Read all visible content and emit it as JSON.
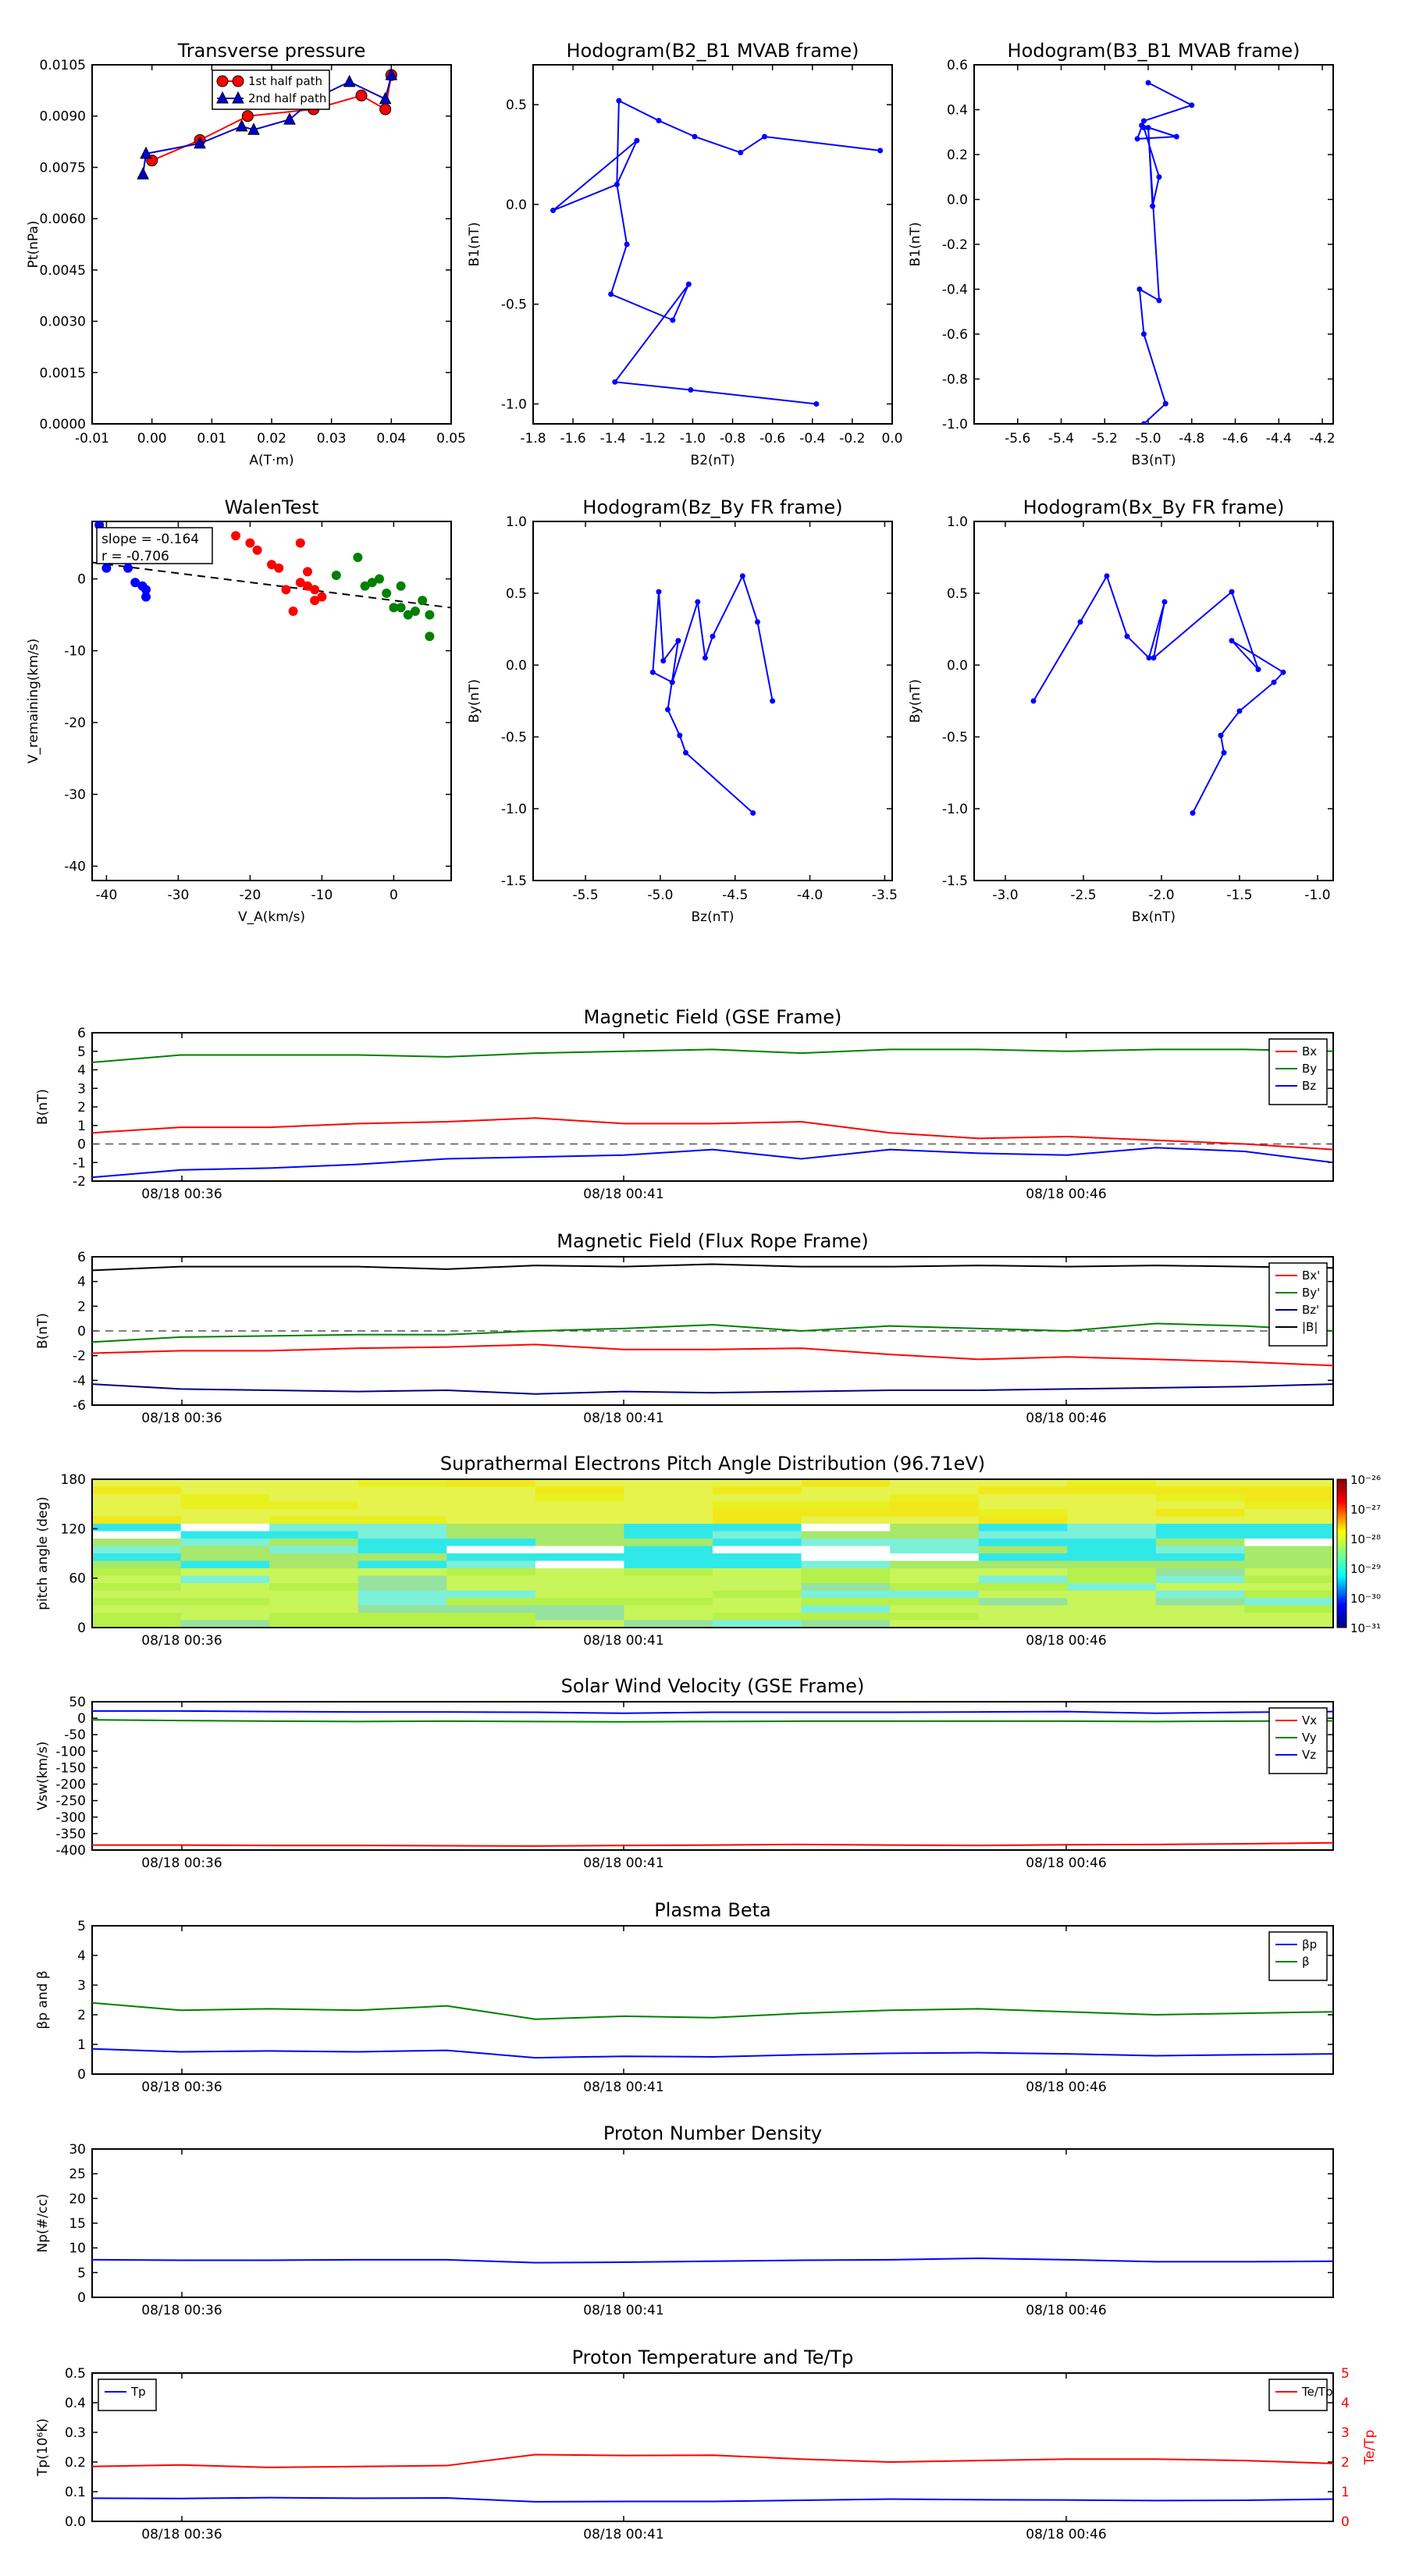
{
  "panels": {
    "transverse": {
      "title": "Transverse pressure",
      "xlabel": "A(T·m)",
      "ylabel": "Pt(nPa)",
      "xlim": [
        -0.01,
        0.05
      ],
      "ylim": [
        0,
        0.0105
      ],
      "xticks": [
        "-0.01",
        "0.00",
        "0.01",
        "0.02",
        "0.03",
        "0.04",
        "0.05"
      ],
      "yticks": [
        "0.0000",
        "0.0015",
        "0.0030",
        "0.0045",
        "0.0060",
        "0.0075",
        "0.0090",
        "0.0105"
      ],
      "legend": [
        "1st half path",
        "2nd half path"
      ],
      "series": [
        {
          "name": "1st half path",
          "color": "#ff0000",
          "marker": "circle",
          "x": [
            0.04,
            0.039,
            0.035,
            0.027,
            0.016,
            0.008,
            0.0
          ],
          "y": [
            0.0102,
            0.0092,
            0.0096,
            0.0092,
            0.009,
            0.0083,
            0.0077
          ]
        },
        {
          "name": "2nd half path",
          "color": "#0000cc",
          "marker": "triangle",
          "x": [
            -0.0015,
            -0.001,
            0.008,
            0.015,
            0.017,
            0.023,
            0.027,
            0.033,
            0.039,
            0.04
          ],
          "y": [
            0.0073,
            0.0079,
            0.0082,
            0.0087,
            0.0086,
            0.0089,
            0.0095,
            0.01,
            0.0095,
            0.0102
          ]
        }
      ]
    },
    "hodo_mvab_b2": {
      "title": "Hodogram(B2_B1 MVAB frame)",
      "xlabel": "B2(nT)",
      "ylabel": "B1(nT)",
      "xlim": [
        -1.8,
        0.0
      ],
      "ylim": [
        -1.1,
        0.7
      ],
      "xticks": [
        "-1.8",
        "-1.6",
        "-1.4",
        "-1.2",
        "-1.0",
        "-0.8",
        "-0.6",
        "-0.4",
        "-0.2",
        "0.0"
      ],
      "yticks": [
        "-1.0",
        "-0.5",
        "0.0",
        "0.5"
      ],
      "x": [
        -0.06,
        -0.64,
        -0.76,
        -0.99,
        -1.17,
        -1.37,
        -1.38,
        -1.28,
        -1.7,
        -1.38,
        -1.33,
        -1.41,
        -1.1,
        -1.02,
        -1.39,
        -1.01,
        -0.38
      ],
      "y": [
        0.27,
        0.34,
        0.26,
        0.34,
        0.42,
        0.52,
        0.1,
        0.32,
        -0.03,
        0.1,
        -0.2,
        -0.45,
        -0.58,
        -0.4,
        -0.89,
        -0.93,
        -1.0
      ]
    },
    "hodo_mvab_b3": {
      "title": "Hodogram(B3_B1 MVAB frame)",
      "xlabel": "B3(nT)",
      "ylabel": "B1(nT)",
      "xlim": [
        -5.8,
        -4.15
      ],
      "ylim": [
        -1.0,
        0.6
      ],
      "xticks": [
        "-5.6",
        "-5.4",
        "-5.2",
        "-5.0",
        "-4.8",
        "-4.6",
        "-4.4",
        "-4.2"
      ],
      "yticks": [
        "-1.0",
        "-0.8",
        "-0.6",
        "-0.4",
        "-0.2",
        "0.0",
        "0.2",
        "0.4",
        "0.6"
      ],
      "x": [
        -5.0,
        -4.8,
        -5.02,
        -5.05,
        -4.87,
        -5.03,
        -5.02,
        -4.95,
        -4.98,
        -5.0,
        -4.95,
        -5.04,
        -5.02,
        -4.92,
        -5.02
      ],
      "y": [
        0.52,
        0.42,
        0.35,
        0.27,
        0.28,
        0.33,
        0.32,
        0.1,
        -0.03,
        0.32,
        -0.45,
        -0.4,
        -0.6,
        -0.91,
        -1.0
      ]
    },
    "walen": {
      "title": "WalenTest",
      "xlabel": "V_A(km/s)",
      "ylabel": "V_remaining(km/s)",
      "xlim": [
        -42,
        8
      ],
      "ylim": [
        -42,
        8
      ],
      "xticks": [
        "-40",
        "-30",
        "-20",
        "-10",
        "0"
      ],
      "yticks": [
        "-40",
        "-30",
        "-20",
        "-10",
        "0"
      ],
      "annotation": [
        "slope = -0.164",
        "r = -0.706"
      ],
      "fit": {
        "slope": -0.164,
        "x": [
          -42,
          8
        ]
      },
      "blue": {
        "x": [
          -41,
          -40,
          -37,
          -36,
          -35,
          -34.5,
          -34.5
        ],
        "y": [
          7.5,
          1.5,
          1.5,
          -0.5,
          -1,
          -1.5,
          -2.5
        ]
      },
      "red": {
        "x": [
          -22,
          -20,
          -19,
          -17,
          -16,
          -15,
          -14,
          -13,
          -13,
          -12,
          -12,
          -11,
          -11,
          -10
        ],
        "y": [
          6,
          5,
          4,
          2,
          1.5,
          -1.5,
          -4.5,
          5,
          -0.5,
          1,
          -1,
          -1.5,
          -3,
          -2.5
        ]
      },
      "green": {
        "x": [
          -8,
          -5,
          -4,
          -3,
          -2,
          -1,
          0,
          1,
          1,
          2,
          3,
          4,
          5,
          5
        ],
        "y": [
          0.5,
          3,
          -1,
          -0.5,
          0,
          -2,
          -4,
          -4,
          -1,
          -5,
          -4.5,
          -3,
          -5,
          -8
        ]
      }
    },
    "hodo_fr_bz": {
      "title": "Hodogram(Bz_By FR frame)",
      "xlabel": "Bz(nT)",
      "ylabel": "By(nT)",
      "xlim": [
        -5.85,
        -3.45
      ],
      "ylim": [
        -1.5,
        1.0
      ],
      "xticks": [
        "-5.5",
        "-5.0",
        "-4.5",
        "-4.0",
        "-3.5"
      ],
      "yticks": [
        "-1.5",
        "-1.0",
        "-0.5",
        "0.0",
        "0.5",
        "1.0"
      ],
      "x": [
        -4.25,
        -4.35,
        -4.45,
        -4.65,
        -4.7,
        -4.75,
        -4.92,
        -5.05,
        -5.01,
        -4.98,
        -4.88,
        -4.95,
        -4.87,
        -4.83,
        -4.38
      ],
      "y": [
        -0.25,
        0.3,
        0.62,
        0.2,
        0.05,
        0.44,
        -0.12,
        -0.05,
        0.51,
        0.03,
        0.17,
        -0.31,
        -0.49,
        -0.61,
        -1.03
      ]
    },
    "hodo_fr_bx": {
      "title": "Hodogram(Bx_By FR frame)",
      "xlabel": "Bx(nT)",
      "ylabel": "By(nT)",
      "xlim": [
        -3.2,
        -0.9
      ],
      "ylim": [
        -1.5,
        1.0
      ],
      "xticks": [
        "-3.0",
        "-2.5",
        "-2.0",
        "-1.5",
        "-1.0"
      ],
      "yticks": [
        "-1.5",
        "-1.0",
        "-0.5",
        "0.0",
        "0.5",
        "1.0"
      ],
      "x": [
        -2.82,
        -2.52,
        -2.35,
        -2.22,
        -2.08,
        -1.98,
        -2.05,
        -1.55,
        -1.38,
        -1.55,
        -1.22,
        -1.28,
        -1.5,
        -1.62,
        -1.6,
        -1.8
      ],
      "y": [
        -0.25,
        0.3,
        0.62,
        0.2,
        0.05,
        0.44,
        0.05,
        0.51,
        -0.03,
        0.17,
        -0.05,
        -0.12,
        -0.32,
        -0.49,
        -0.61,
        -1.03
      ]
    }
  },
  "timeseries": {
    "xticks": [
      "08/18 00:36",
      "08/18 00:41",
      "08/18 00:46"
    ],
    "n": 15,
    "mag_gse": {
      "title": "Magnetic Field (GSE Frame)",
      "ylabel": "B(nT)",
      "ylim": [
        -2,
        6
      ],
      "yticks": [
        "-2",
        "-1",
        "0",
        "1",
        "2",
        "3",
        "4",
        "5",
        "6"
      ],
      "dashed_zero": true,
      "series": [
        {
          "name": "Bx",
          "color": "#ff0000",
          "values": [
            0.6,
            0.9,
            0.9,
            1.1,
            1.2,
            1.4,
            1.1,
            1.1,
            1.2,
            0.6,
            0.3,
            0.4,
            0.2,
            0.0,
            -0.3
          ]
        },
        {
          "name": "By",
          "color": "#008000",
          "values": [
            4.4,
            4.8,
            4.8,
            4.8,
            4.7,
            4.9,
            5.0,
            5.1,
            4.9,
            5.1,
            5.1,
            5.0,
            5.1,
            5.1,
            5.0
          ]
        },
        {
          "name": "Bz",
          "color": "#0000ff",
          "values": [
            -1.8,
            -1.4,
            -1.3,
            -1.1,
            -0.8,
            -0.7,
            -0.6,
            -0.3,
            -0.8,
            -0.3,
            -0.5,
            -0.6,
            -0.2,
            -0.4,
            -1.0
          ]
        }
      ]
    },
    "mag_fr": {
      "title": "Magnetic Field (Flux Rope Frame)",
      "ylabel": "B(nT)",
      "ylim": [
        -6,
        6
      ],
      "yticks": [
        "-6",
        "-4",
        "-2",
        "0",
        "2",
        "4",
        "6"
      ],
      "dashed_zero": true,
      "series": [
        {
          "name": "Bx'",
          "color": "#ff0000",
          "values": [
            -1.8,
            -1.6,
            -1.6,
            -1.4,
            -1.3,
            -1.1,
            -1.5,
            -1.5,
            -1.4,
            -1.9,
            -2.3,
            -2.1,
            -2.3,
            -2.5,
            -2.8
          ]
        },
        {
          "name": "By'",
          "color": "#008000",
          "values": [
            -0.9,
            -0.5,
            -0.4,
            -0.3,
            -0.3,
            0.0,
            0.2,
            0.5,
            0.0,
            0.4,
            0.2,
            0.0,
            0.6,
            0.4,
            0.0
          ]
        },
        {
          "name": "Bz'",
          "color": "#000080",
          "values": [
            -4.3,
            -4.7,
            -4.8,
            -4.9,
            -4.8,
            -5.1,
            -4.9,
            -5.0,
            -4.9,
            -4.8,
            -4.8,
            -4.7,
            -4.6,
            -4.5,
            -4.3
          ]
        },
        {
          "name": "|B|",
          "color": "#000000",
          "values": [
            4.9,
            5.2,
            5.2,
            5.2,
            5.0,
            5.3,
            5.2,
            5.4,
            5.2,
            5.2,
            5.3,
            5.2,
            5.3,
            5.2,
            5.1
          ]
        }
      ]
    },
    "pad": {
      "title": "Suprathermal Electrons Pitch Angle Distribution (96.71eV)",
      "ylabel": "pitch angle (deg)",
      "ylim": [
        0,
        180
      ],
      "yticks": [
        "0",
        "60",
        "120",
        "180"
      ],
      "colorbar_ticks": [
        "10⁻²⁶",
        "10⁻²⁷",
        "10⁻²⁸",
        "10⁻²⁹",
        "10⁻³⁰",
        "10⁻³¹"
      ],
      "ncols": 14,
      "nrows": 20,
      "seed": 7
    },
    "vsw": {
      "title": "Solar Wind Velocity (GSE Frame)",
      "ylabel": "Vsw(km/s)",
      "ylim": [
        -400,
        50
      ],
      "yticks": [
        "-400",
        "-350",
        "-300",
        "-250",
        "-200",
        "-150",
        "-100",
        "-50",
        "0",
        "50"
      ],
      "series": [
        {
          "name": "Vx",
          "color": "#ff0000",
          "values": [
            -385,
            -385,
            -386,
            -386,
            -387,
            -388,
            -386,
            -385,
            -383,
            -385,
            -386,
            -384,
            -383,
            -381,
            -378
          ]
        },
        {
          "name": "Vy",
          "color": "#008000",
          "values": [
            -5,
            -7,
            -9,
            -10,
            -9,
            -10,
            -11,
            -10,
            -9,
            -9,
            -9,
            -9,
            -10,
            -9,
            -8
          ]
        },
        {
          "name": "Vz",
          "color": "#0000ff",
          "values": [
            22,
            22,
            20,
            19,
            19,
            18,
            15,
            18,
            18,
            18,
            19,
            20,
            15,
            18,
            20
          ]
        }
      ]
    },
    "beta": {
      "title": "Plasma Beta",
      "ylabel": "βp and β",
      "ylim": [
        0,
        5
      ],
      "yticks": [
        "0",
        "1",
        "2",
        "3",
        "4",
        "5"
      ],
      "series": [
        {
          "name": "βp",
          "color": "#0000ff",
          "values": [
            0.85,
            0.75,
            0.78,
            0.75,
            0.8,
            0.55,
            0.6,
            0.58,
            0.65,
            0.7,
            0.72,
            0.68,
            0.62,
            0.65,
            0.68
          ]
        },
        {
          "name": "β",
          "color": "#008000",
          "values": [
            2.4,
            2.15,
            2.2,
            2.15,
            2.3,
            1.85,
            1.95,
            1.9,
            2.05,
            2.15,
            2.2,
            2.1,
            2.0,
            2.05,
            2.1
          ]
        }
      ]
    },
    "density": {
      "title": "Proton Number Density",
      "ylabel": "Np(#/cc)",
      "ylim": [
        0,
        30
      ],
      "yticks": [
        "0",
        "5",
        "10",
        "15",
        "20",
        "25",
        "30"
      ],
      "series": [
        {
          "name": "Np",
          "color": "#0000ff",
          "values": [
            7.6,
            7.5,
            7.5,
            7.6,
            7.6,
            7.0,
            7.1,
            7.3,
            7.5,
            7.6,
            7.9,
            7.6,
            7.2,
            7.2,
            7.3
          ]
        }
      ]
    },
    "temp": {
      "title": "Proton Temperature and Te/Tp",
      "ylabel": "Tp(10⁶K)",
      "ylabel_right": "Te/Tp",
      "ylim": [
        0,
        0.5
      ],
      "yticks": [
        "0.0",
        "0.1",
        "0.2",
        "0.3",
        "0.4",
        "0.5"
      ],
      "ylim_right": [
        0,
        5
      ],
      "yticks_right": [
        "0",
        "1",
        "2",
        "3",
        "4",
        "5"
      ],
      "series": [
        {
          "name": "Tp",
          "color": "#0000ff",
          "axis": "left",
          "values": [
            0.078,
            0.077,
            0.08,
            0.078,
            0.079,
            0.066,
            0.067,
            0.067,
            0.071,
            0.075,
            0.073,
            0.072,
            0.07,
            0.071,
            0.075
          ]
        },
        {
          "name": "Te/Tp",
          "color": "#ff0000",
          "axis": "right",
          "values": [
            1.85,
            1.9,
            1.82,
            1.85,
            1.88,
            2.25,
            2.22,
            2.23,
            2.1,
            2.0,
            2.05,
            2.1,
            2.1,
            2.05,
            1.95
          ]
        }
      ]
    }
  }
}
